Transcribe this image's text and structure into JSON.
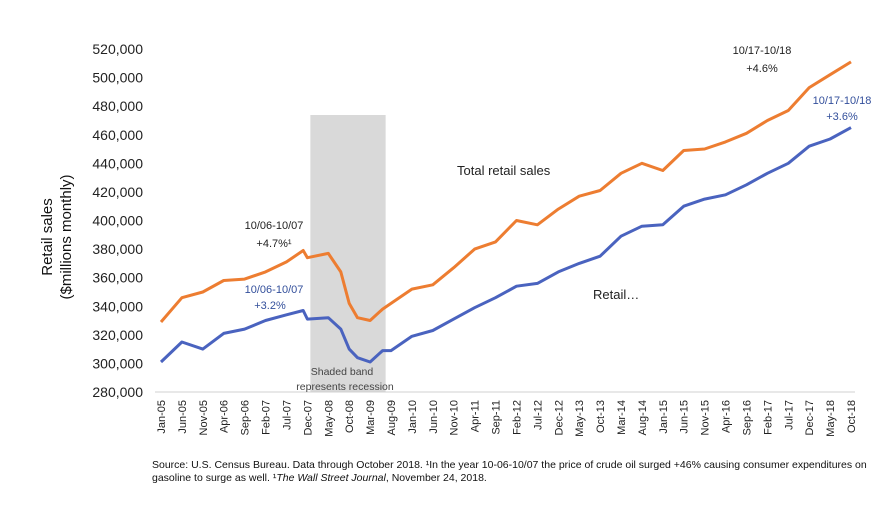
{
  "chart_data": {
    "type": "line",
    "xlabel": "",
    "ylabel_line1": "Retail sales",
    "ylabel_line2": "($millions monthly)",
    "ylim": [
      280000,
      520000
    ],
    "yticks": [
      "280,000",
      "300,000",
      "320,000",
      "340,000",
      "360,000",
      "380,000",
      "400,000",
      "420,000",
      "440,000",
      "460,000",
      "480,000",
      "500,000",
      "520,000"
    ],
    "ytick_values": [
      280000,
      300000,
      320000,
      340000,
      360000,
      380000,
      400000,
      420000,
      440000,
      460000,
      480000,
      500000,
      520000
    ],
    "grid": false,
    "xticks": [
      "Jan-05",
      "Jun-05",
      "Nov-05",
      "Apr-06",
      "Sep-06",
      "Feb-07",
      "Jul-07",
      "Dec-07",
      "May-08",
      "Oct-08",
      "Mar-09",
      "Aug-09",
      "Jan-10",
      "Jun-10",
      "Nov-10",
      "Apr-11",
      "Sep-11",
      "Feb-12",
      "Jul-12",
      "Dec-12",
      "May-13",
      "Oct-13",
      "Mar-14",
      "Aug-14",
      "Jan-15",
      "Jun-15",
      "Nov-15",
      "Apr-16",
      "Sep-16",
      "Feb-17",
      "Jul-17",
      "Dec-17",
      "May-18",
      "Oct-18"
    ],
    "recession_band": {
      "start": "Dec-07",
      "end": "Jun-09",
      "note_line1": "Shaded band",
      "note_line2": "represents recession"
    },
    "series": [
      {
        "name": "Total retail sales",
        "color": "#ed7d31",
        "points": [
          [
            "Jan-05",
            329000
          ],
          [
            "Jun-05",
            346000
          ],
          [
            "Nov-05",
            350000
          ],
          [
            "Apr-06",
            358000
          ],
          [
            "Sep-06",
            359000
          ],
          [
            "Feb-07",
            364000
          ],
          [
            "Jul-07",
            371000
          ],
          [
            "Nov-07",
            379000
          ],
          [
            "Dec-07",
            374000
          ],
          [
            "May-08",
            377000
          ],
          [
            "Aug-08",
            364000
          ],
          [
            "Oct-08",
            342000
          ],
          [
            "Dec-08",
            332000
          ],
          [
            "Mar-09",
            330000
          ],
          [
            "Jun-09",
            338000
          ],
          [
            "Aug-09",
            342000
          ],
          [
            "Jan-10",
            352000
          ],
          [
            "Jun-10",
            355000
          ],
          [
            "Nov-10",
            367000
          ],
          [
            "Apr-11",
            380000
          ],
          [
            "Sep-11",
            385000
          ],
          [
            "Feb-12",
            400000
          ],
          [
            "Jul-12",
            397000
          ],
          [
            "Dec-12",
            408000
          ],
          [
            "May-13",
            417000
          ],
          [
            "Oct-13",
            421000
          ],
          [
            "Mar-14",
            433000
          ],
          [
            "Aug-14",
            440000
          ],
          [
            "Jan-15",
            435000
          ],
          [
            "Jun-15",
            449000
          ],
          [
            "Nov-15",
            450000
          ],
          [
            "Apr-16",
            455000
          ],
          [
            "Sep-16",
            461000
          ],
          [
            "Feb-17",
            470000
          ],
          [
            "Jul-17",
            477000
          ],
          [
            "Dec-17",
            493000
          ],
          [
            "May-18",
            502000
          ],
          [
            "Oct-18",
            511000
          ]
        ]
      },
      {
        "name": "Retail…",
        "color": "#4a63bf",
        "points": [
          [
            "Jan-05",
            301000
          ],
          [
            "Jun-05",
            315000
          ],
          [
            "Nov-05",
            310000
          ],
          [
            "Apr-06",
            321000
          ],
          [
            "Sep-06",
            324000
          ],
          [
            "Feb-07",
            330000
          ],
          [
            "Jul-07",
            334000
          ],
          [
            "Nov-07",
            337000
          ],
          [
            "Dec-07",
            331000
          ],
          [
            "May-08",
            332000
          ],
          [
            "Aug-08",
            324000
          ],
          [
            "Oct-08",
            310000
          ],
          [
            "Dec-08",
            304000
          ],
          [
            "Mar-09",
            301000
          ],
          [
            "Jun-09",
            309000
          ],
          [
            "Aug-09",
            309000
          ],
          [
            "Jan-10",
            319000
          ],
          [
            "Jun-10",
            323000
          ],
          [
            "Nov-10",
            331000
          ],
          [
            "Apr-11",
            339000
          ],
          [
            "Sep-11",
            346000
          ],
          [
            "Feb-12",
            354000
          ],
          [
            "Jul-12",
            356000
          ],
          [
            "Dec-12",
            364000
          ],
          [
            "May-13",
            370000
          ],
          [
            "Oct-13",
            375000
          ],
          [
            "Mar-14",
            389000
          ],
          [
            "Aug-14",
            396000
          ],
          [
            "Jan-15",
            397000
          ],
          [
            "Jun-15",
            410000
          ],
          [
            "Nov-15",
            415000
          ],
          [
            "Apr-16",
            418000
          ],
          [
            "Sep-16",
            425000
          ],
          [
            "Feb-17",
            433000
          ],
          [
            "Jul-17",
            440000
          ],
          [
            "Dec-17",
            452000
          ],
          [
            "May-18",
            457000
          ],
          [
            "Oct-18",
            465000
          ]
        ]
      }
    ],
    "annotations": [
      {
        "key": "orange_2018",
        "line1": "10/17-10/18",
        "line2": "+4.6%"
      },
      {
        "key": "blue_2018",
        "line1": "10/17-10/18",
        "line2": "+3.6%"
      },
      {
        "key": "orange_2007",
        "line1": "10/06-10/07",
        "line2": "+4.7%¹"
      },
      {
        "key": "blue_2007",
        "line1": "10/06-10/07",
        "line2": "+3.2%"
      }
    ]
  },
  "source": {
    "text_1": "Source: U.S. Census Bureau. Data through October 2018.  ¹In the year 10-06-10/07 the price of crude oil surged +46% causing consumer expenditures on gasoline to surge as well. ¹",
    "text_italic": "The Wall Street Journal",
    "text_2": ", November 24, 2018."
  }
}
